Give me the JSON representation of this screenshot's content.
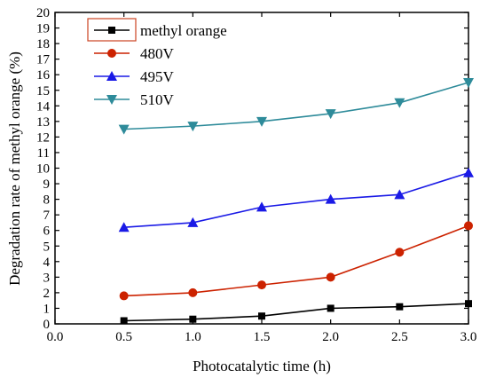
{
  "chart_data": {
    "type": "line",
    "xlabel": "Photocatalytic time (h)",
    "ylabel": "Degradation rate of methyl orange (%)",
    "xlim": [
      0,
      3.0
    ],
    "ylim": [
      0,
      20
    ],
    "x_ticks": [
      "0.0",
      "0.5",
      "1.0",
      "1.5",
      "2.0",
      "2.5",
      "3.0"
    ],
    "y_ticks": [
      "0",
      "1",
      "2",
      "3",
      "4",
      "5",
      "6",
      "7",
      "8",
      "9",
      "10",
      "11",
      "12",
      "13",
      "14",
      "15",
      "16",
      "17",
      "18",
      "19",
      "20"
    ],
    "grid": false,
    "legend_position": "top-left",
    "x": [
      0.5,
      1.0,
      1.5,
      2.0,
      2.5,
      3.0
    ],
    "series": [
      {
        "name": "methyl orange",
        "values": [
          0.2,
          0.3,
          0.5,
          1.0,
          1.1,
          1.3
        ],
        "color": "#000000",
        "marker": "square"
      },
      {
        "name": "480V",
        "values": [
          1.8,
          2.0,
          2.5,
          3.0,
          4.6,
          6.3
        ],
        "color": "#cc2200",
        "marker": "circle"
      },
      {
        "name": "495V",
        "values": [
          6.2,
          6.5,
          7.5,
          8.0,
          8.3,
          9.7
        ],
        "color": "#1a1ae6",
        "marker": "triangle-up"
      },
      {
        "name": "510V",
        "values": [
          12.5,
          12.7,
          13.0,
          13.5,
          14.2,
          15.5
        ],
        "color": "#2e8b9a",
        "marker": "triangle-down"
      }
    ]
  }
}
